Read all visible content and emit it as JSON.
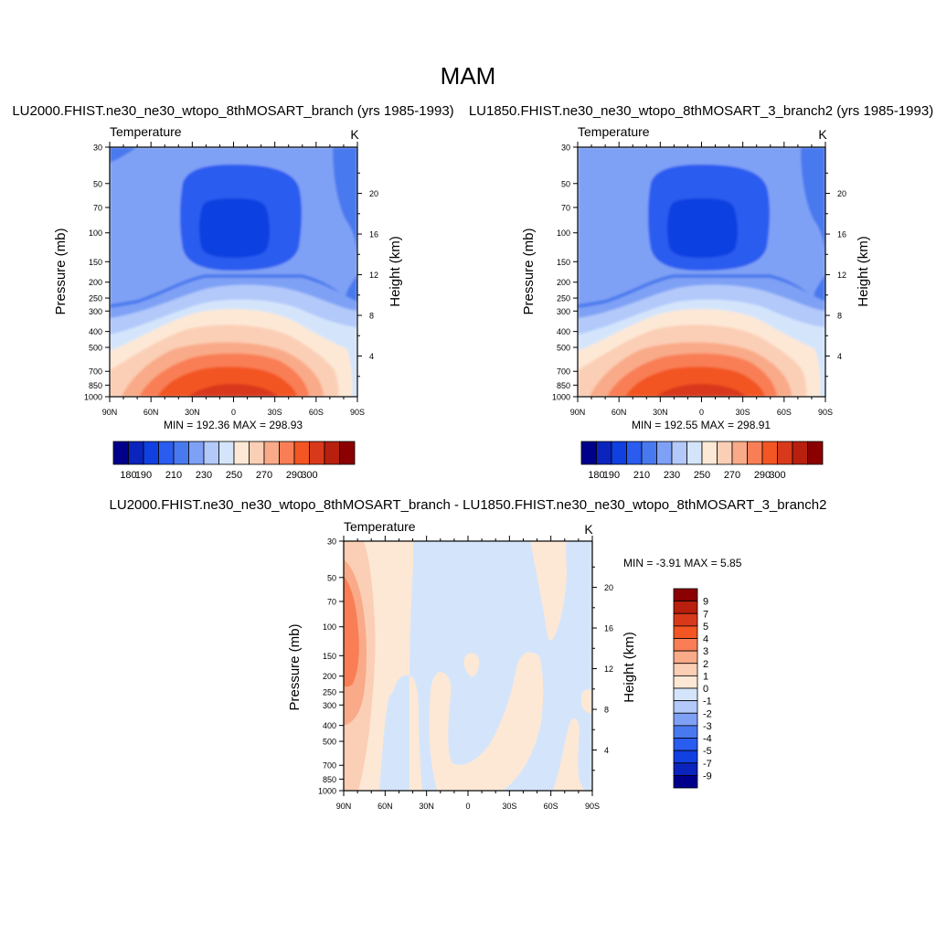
{
  "title": "MAM",
  "chart_data": [
    {
      "type": "heatmap",
      "title": "LU2000.FHIST.ne30_ne30_wtopo_8thMOSART_branch (yrs 1985-1993)",
      "subtitle_left": "Temperature",
      "subtitle_right": "K",
      "ylabel": "Pressure (mb)",
      "ylabel_right": "Height (km)",
      "x_ticks": [
        "90N",
        "60N",
        "30N",
        "0",
        "30S",
        "60S",
        "90S"
      ],
      "y_ticks": [
        30,
        50,
        70,
        100,
        150,
        200,
        250,
        300,
        400,
        500,
        700,
        850,
        1000
      ],
      "y_ticks_right": [
        4,
        8,
        12,
        16,
        20
      ],
      "min": 192.36,
      "max": 298.93,
      "minmax_text": "MIN = 192.36  MAX = 298.93",
      "colorbar": {
        "orientation": "horizontal",
        "levels": [
          180,
          190,
          200,
          210,
          220,
          230,
          240,
          250,
          260,
          270,
          280,
          290,
          300
        ],
        "labels": [
          "180",
          "190",
          "210",
          "230",
          "250",
          "270",
          "290",
          "300"
        ]
      }
    },
    {
      "type": "heatmap",
      "title": "LU1850.FHIST.ne30_ne30_wtopo_8thMOSART_3_branch2 (yrs 1985-1993)",
      "subtitle_left": "Temperature",
      "subtitle_right": "K",
      "ylabel": "Pressure (mb)",
      "ylabel_right": "Height (km)",
      "x_ticks": [
        "90N",
        "60N",
        "30N",
        "0",
        "30S",
        "60S",
        "90S"
      ],
      "y_ticks": [
        30,
        50,
        70,
        100,
        150,
        200,
        250,
        300,
        400,
        500,
        700,
        850,
        1000
      ],
      "y_ticks_right": [
        4,
        8,
        12,
        16,
        20
      ],
      "min": 192.55,
      "max": 298.91,
      "minmax_text": "MIN = 192.55  MAX = 298.91",
      "colorbar": {
        "orientation": "horizontal",
        "levels": [
          180,
          190,
          200,
          210,
          220,
          230,
          240,
          250,
          260,
          270,
          280,
          290,
          300
        ],
        "labels": [
          "180",
          "190",
          "210",
          "230",
          "250",
          "270",
          "290",
          "300"
        ]
      }
    },
    {
      "type": "heatmap",
      "title": "LU2000.FHIST.ne30_ne30_wtopo_8thMOSART_branch - LU1850.FHIST.ne30_ne30_wtopo_8thMOSART_3_branch2",
      "subtitle_left": "Temperature",
      "subtitle_right": "K",
      "ylabel": "Pressure (mb)",
      "ylabel_right": "Height (km)",
      "x_ticks": [
        "90N",
        "60N",
        "30N",
        "0",
        "30S",
        "60S",
        "90S"
      ],
      "y_ticks": [
        30,
        50,
        70,
        100,
        150,
        200,
        250,
        300,
        400,
        500,
        700,
        850,
        1000
      ],
      "y_ticks_right": [
        4,
        8,
        12,
        16,
        20
      ],
      "min": -3.91,
      "max": 5.85,
      "minmax_text": "MIN =  -3.91  MAX =   5.85",
      "colorbar": {
        "orientation": "vertical",
        "labels": [
          "9",
          "7",
          "5",
          "4",
          "3",
          "2",
          "1",
          "0",
          "-1",
          "-2",
          "-3",
          "-4",
          "-5",
          "-7",
          "-9"
        ]
      }
    }
  ],
  "colors": {
    "abs_scale": [
      "#00008b",
      "#0a24bd",
      "#1140e0",
      "#2a5cf0",
      "#4979ee",
      "#7fa1f5",
      "#b2c9fa",
      "#d4e5fb",
      "#fde8d6",
      "#fbcfb6",
      "#f9aa88",
      "#f97e55",
      "#f35523",
      "#d9391b",
      "#b81f0f",
      "#8b0000"
    ],
    "diff_scale": [
      "#8b0000",
      "#b81f0f",
      "#d9391b",
      "#f35523",
      "#f97e55",
      "#f9aa88",
      "#fbcfb6",
      "#fde8d6",
      "#d4e5fb",
      "#b2c9fa",
      "#7fa1f5",
      "#4979ee",
      "#2a5cf0",
      "#1140e0",
      "#0a24bd",
      "#00008b"
    ]
  }
}
